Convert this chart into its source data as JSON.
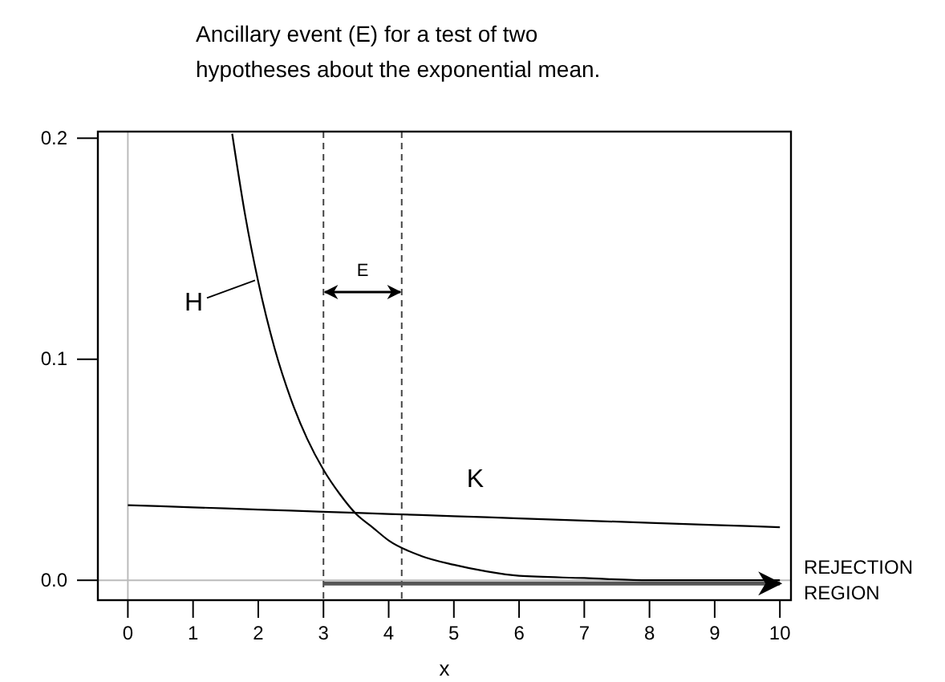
{
  "chart_data": {
    "type": "line",
    "title": "Ancillary event (E) for a test of two hypotheses about the exponential mean.",
    "xlabel": "x",
    "xlim": [
      -0.46,
      10.17
    ],
    "ylim": [
      -0.009,
      0.203
    ],
    "xticks": [
      0,
      1,
      2,
      3,
      4,
      5,
      6,
      7,
      8,
      9,
      10
    ],
    "yticks": [
      {
        "value": 0,
        "label": "0.0"
      },
      0.1,
      0.2
    ],
    "series": [
      {
        "name": "H",
        "color": "#000000",
        "x": [
          1.6,
          1.8,
          2,
          2.25,
          2.5,
          2.75,
          3,
          3.25,
          3.5,
          3.75,
          4,
          4.5,
          5,
          5.5,
          6,
          7,
          8,
          9,
          10
        ],
        "values": [
          0.202,
          0.165,
          0.135,
          0.105,
          0.082,
          0.064,
          0.05,
          0.039,
          0.03,
          0.024,
          0.018,
          0.011,
          0.007,
          0.004,
          0.002,
          0.001,
          0.0,
          0.0,
          0.0
        ]
      },
      {
        "name": "K",
        "color": "#000000",
        "x": [
          0,
          1,
          2,
          3,
          4,
          5,
          6,
          7,
          8,
          9,
          10
        ],
        "values": [
          0.034,
          0.033,
          0.032,
          0.031,
          0.03,
          0.029,
          0.028,
          0.027,
          0.026,
          0.025,
          0.024
        ]
      }
    ],
    "ref_lines": [
      {
        "axis": "x",
        "value": 0,
        "color": "#bbbbbb",
        "line_style": "solid"
      },
      {
        "axis": "y",
        "value": 0,
        "color": "#bbbbbb",
        "line_style": "solid"
      },
      {
        "axis": "x",
        "value": 3,
        "color": "#444444",
        "line_style": "dashed"
      },
      {
        "axis": "x",
        "value": 4.2,
        "color": "#444444",
        "line_style": "dashed"
      }
    ],
    "annotations": [
      "E",
      {
        "text": "REJECTION REGION",
        "x": 10,
        "y": 0
      }
    ],
    "grid": false,
    "marker": "none",
    "line_style": "solid"
  }
}
